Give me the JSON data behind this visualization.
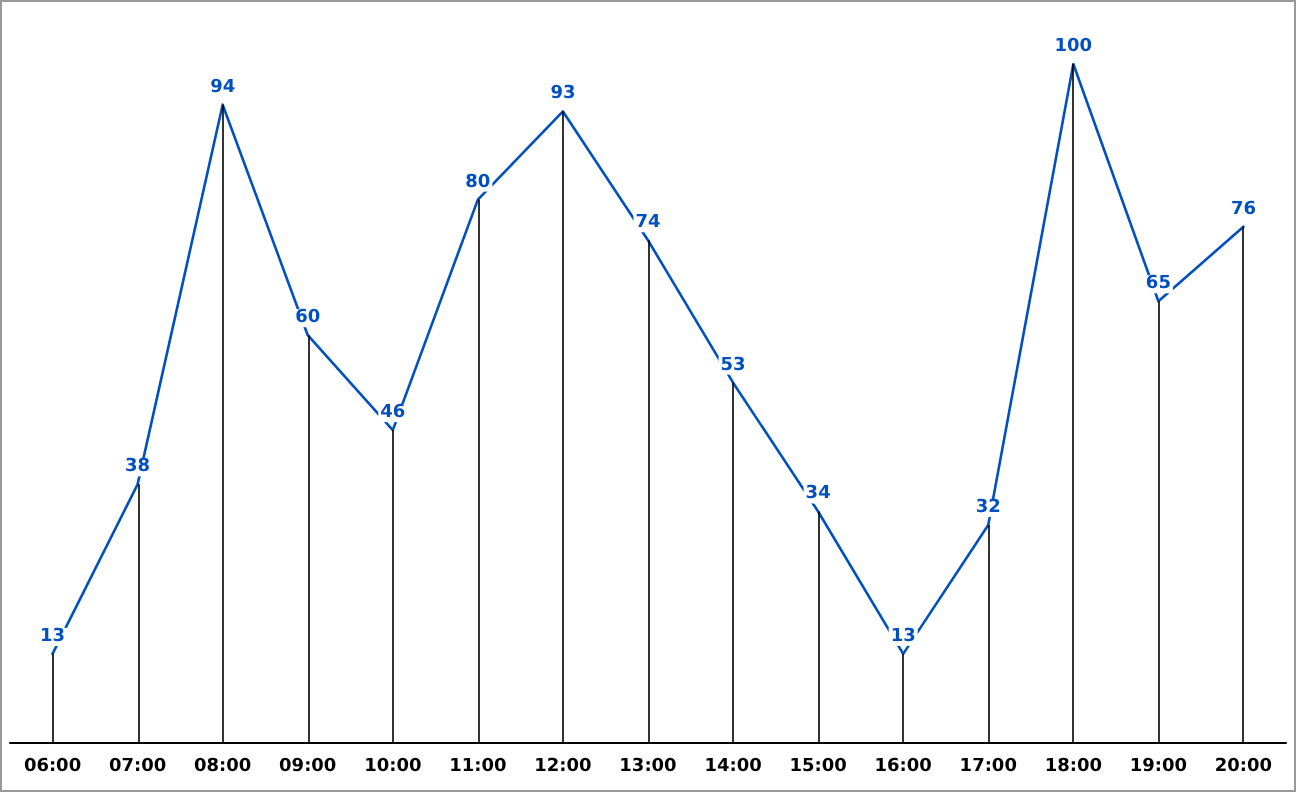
{
  "chart_data": {
    "type": "line",
    "categories": [
      "06:00",
      "07:00",
      "08:00",
      "09:00",
      "10:00",
      "11:00",
      "12:00",
      "13:00",
      "14:00",
      "15:00",
      "16:00",
      "17:00",
      "18:00",
      "19:00",
      "20:00"
    ],
    "series": [
      {
        "color": "#0050c0",
        "values": [
          13,
          38,
          94,
          60,
          46,
          80,
          93,
          74,
          53,
          34,
          13,
          32,
          100,
          65,
          76
        ]
      }
    ],
    "ylim": [
      0,
      100
    ],
    "tick_labels": "x",
    "data_labels": true,
    "grid": "x",
    "marker": "none",
    "line_style": "solid"
  }
}
